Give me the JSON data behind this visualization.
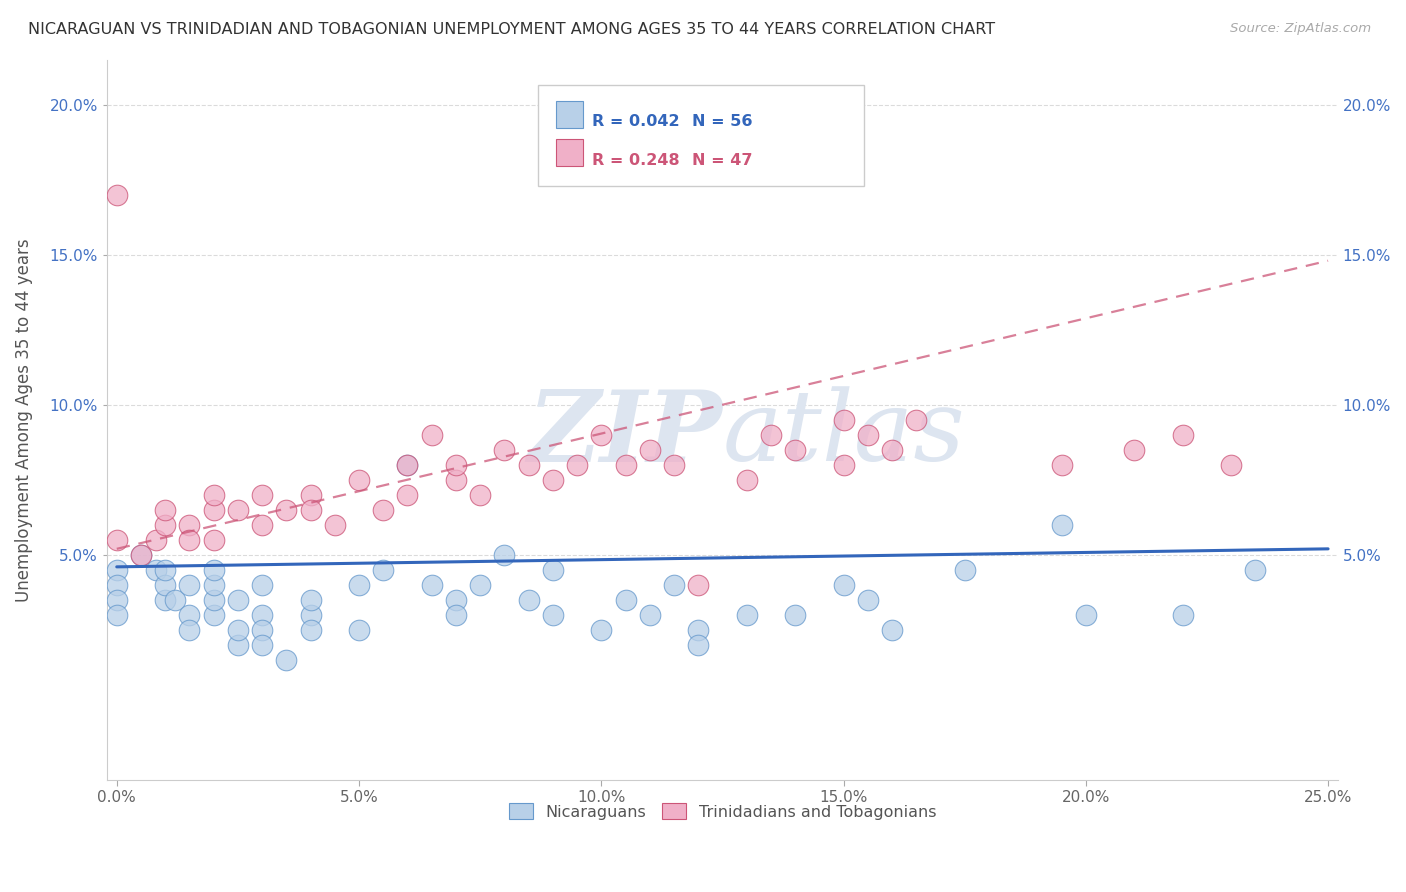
{
  "title": "NICARAGUAN VS TRINIDADIAN AND TOBAGONIAN UNEMPLOYMENT AMONG AGES 35 TO 44 YEARS CORRELATION CHART",
  "source": "Source: ZipAtlas.com",
  "ylabel": "Unemployment Among Ages 35 to 44 years",
  "xlim": [
    -0.002,
    0.252
  ],
  "ylim": [
    -0.025,
    0.215
  ],
  "xticks": [
    0.0,
    0.05,
    0.1,
    0.15,
    0.2,
    0.25
  ],
  "yticks": [
    0.05,
    0.1,
    0.15,
    0.2
  ],
  "ytick_labels": [
    "5.0%",
    "10.0%",
    "15.0%",
    "20.0%"
  ],
  "xtick_labels": [
    "0.0%",
    "5.0%",
    "10.0%",
    "15.0%",
    "20.0%",
    "25.0%"
  ],
  "blue_R": 0.042,
  "blue_N": 56,
  "pink_R": 0.248,
  "pink_N": 47,
  "blue_label": "Nicaraguans",
  "pink_label": "Trinidadians and Tobagonians",
  "blue_color": "#b8d0e8",
  "blue_edge": "#6699cc",
  "pink_color": "#f0b0c8",
  "pink_edge": "#cc5577",
  "blue_line_color": "#3366bb",
  "pink_line_color": "#cc5577",
  "watermark_color": "#dde5f0",
  "blue_trend_x0": 0.0,
  "blue_trend_x1": 0.25,
  "blue_trend_y0": 0.046,
  "blue_trend_y1": 0.052,
  "pink_trend_x0": 0.0,
  "pink_trend_x1": 0.25,
  "pink_trend_y0": 0.052,
  "pink_trend_y1": 0.148,
  "blue_x": [
    0.0,
    0.0,
    0.0,
    0.0,
    0.005,
    0.008,
    0.01,
    0.01,
    0.01,
    0.012,
    0.015,
    0.015,
    0.015,
    0.02,
    0.02,
    0.02,
    0.02,
    0.025,
    0.025,
    0.025,
    0.03,
    0.03,
    0.03,
    0.03,
    0.035,
    0.04,
    0.04,
    0.04,
    0.05,
    0.05,
    0.055,
    0.06,
    0.065,
    0.07,
    0.07,
    0.075,
    0.08,
    0.085,
    0.09,
    0.09,
    0.1,
    0.105,
    0.11,
    0.115,
    0.12,
    0.12,
    0.13,
    0.14,
    0.15,
    0.155,
    0.16,
    0.175,
    0.195,
    0.2,
    0.22,
    0.235
  ],
  "blue_y": [
    0.045,
    0.04,
    0.035,
    0.03,
    0.05,
    0.045,
    0.035,
    0.04,
    0.045,
    0.035,
    0.04,
    0.03,
    0.025,
    0.03,
    0.035,
    0.04,
    0.045,
    0.02,
    0.025,
    0.035,
    0.04,
    0.03,
    0.025,
    0.02,
    0.015,
    0.03,
    0.025,
    0.035,
    0.04,
    0.025,
    0.045,
    0.08,
    0.04,
    0.035,
    0.03,
    0.04,
    0.05,
    0.035,
    0.045,
    0.03,
    0.025,
    0.035,
    0.03,
    0.04,
    0.025,
    0.02,
    0.03,
    0.03,
    0.04,
    0.035,
    0.025,
    0.045,
    0.06,
    0.03,
    0.03,
    0.045
  ],
  "pink_x": [
    0.0,
    0.0,
    0.005,
    0.008,
    0.01,
    0.01,
    0.015,
    0.015,
    0.02,
    0.02,
    0.02,
    0.025,
    0.03,
    0.03,
    0.035,
    0.04,
    0.04,
    0.045,
    0.05,
    0.055,
    0.06,
    0.06,
    0.065,
    0.07,
    0.07,
    0.075,
    0.08,
    0.085,
    0.09,
    0.095,
    0.1,
    0.105,
    0.11,
    0.115,
    0.12,
    0.13,
    0.135,
    0.14,
    0.15,
    0.155,
    0.16,
    0.165,
    0.195,
    0.21,
    0.22,
    0.23,
    0.15
  ],
  "pink_y": [
    0.055,
    0.17,
    0.05,
    0.055,
    0.06,
    0.065,
    0.06,
    0.055,
    0.065,
    0.055,
    0.07,
    0.065,
    0.06,
    0.07,
    0.065,
    0.07,
    0.065,
    0.06,
    0.075,
    0.065,
    0.08,
    0.07,
    0.09,
    0.075,
    0.08,
    0.07,
    0.085,
    0.08,
    0.075,
    0.08,
    0.09,
    0.08,
    0.085,
    0.08,
    0.04,
    0.075,
    0.09,
    0.085,
    0.08,
    0.09,
    0.085,
    0.095,
    0.08,
    0.085,
    0.09,
    0.08,
    0.095
  ]
}
